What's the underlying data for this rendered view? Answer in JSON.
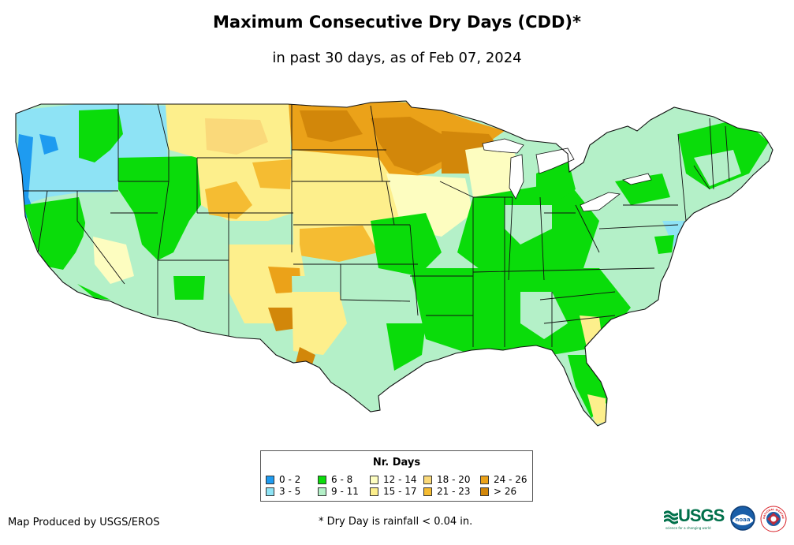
{
  "title": "Maximum Consecutive Dry Days (CDD)*",
  "subtitle": "in past 30 days, as of Feb 07, 2024",
  "legend": {
    "title": "Nr. Days",
    "items": [
      {
        "label": "0 - 2",
        "color": "#1e9bf0"
      },
      {
        "label": "3 - 5",
        "color": "#8ee3f5"
      },
      {
        "label": "6 - 8",
        "color": "#0adc0a"
      },
      {
        "label": "9 - 11",
        "color": "#b4f0c8"
      },
      {
        "label": "12 - 14",
        "color": "#fdfdc0"
      },
      {
        "label": "15 - 17",
        "color": "#fdef8c"
      },
      {
        "label": "18 - 20",
        "color": "#fad97a"
      },
      {
        "label": "21 - 23",
        "color": "#f5bc32"
      },
      {
        "label": "24 - 26",
        "color": "#eba219"
      },
      {
        "label": "> 26",
        "color": "#d2870a"
      }
    ]
  },
  "footer": {
    "producer": "Map Produced by USGS/EROS",
    "note": "* Dry Day is rainfall < 0.04 in."
  },
  "logos": {
    "usgs": "USGS",
    "usgs_tagline": "science for a changing world",
    "noaa": "noaa",
    "nws": "NATIONAL WEATHER SERVICE"
  },
  "colors": {
    "background": "#ffffff",
    "state_border": "#111111",
    "usgs_green": "#00704a",
    "noaa_blue": "#1a5ea8",
    "nws_red": "#d8232a"
  }
}
